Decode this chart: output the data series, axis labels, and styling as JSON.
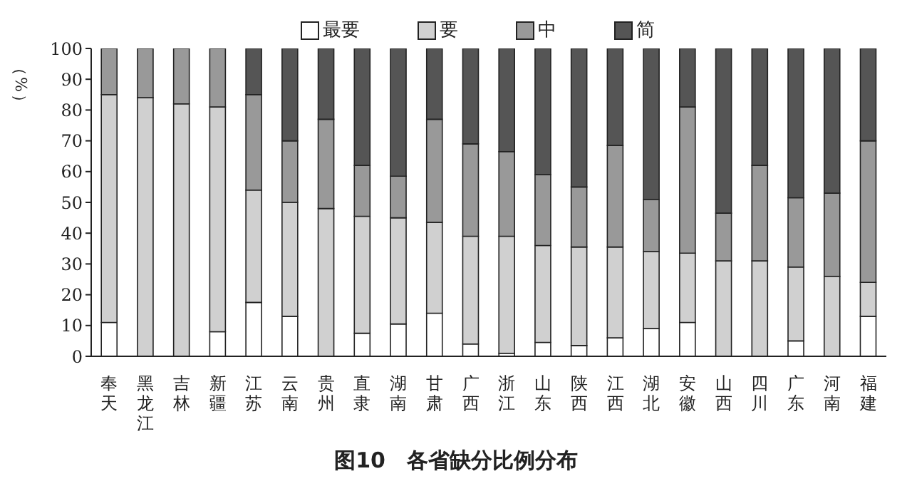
{
  "chart_data": {
    "type": "bar",
    "title": "图10　各省缺分比例分布",
    "ylabel": "（%）",
    "stacked": true,
    "legend": "top",
    "grid": false,
    "categories": [
      "奉天",
      "黑龙江",
      "吉林",
      "新疆",
      "江苏",
      "云南",
      "贵州",
      "直隶",
      "湖南",
      "甘肃",
      "广西",
      "浙江",
      "山东",
      "陕西",
      "江西",
      "湖北",
      "安徽",
      "山西",
      "四川",
      "广东",
      "河南",
      "福建"
    ],
    "ylim": [
      0,
      100
    ],
    "yticks": [
      0,
      10,
      20,
      30,
      40,
      50,
      60,
      70,
      80,
      90,
      100
    ],
    "series": [
      {
        "name": "最要",
        "color": "#ffffff",
        "values": [
          11,
          0,
          0,
          8,
          17.5,
          13,
          0,
          7.5,
          10.5,
          14,
          4,
          1,
          4.5,
          3.5,
          6,
          9,
          11,
          0,
          0,
          5,
          0,
          13
        ]
      },
      {
        "name": "要",
        "color": "#d0d0d0",
        "values": [
          74,
          84,
          82,
          73,
          36.5,
          37,
          48,
          38,
          34.5,
          29.5,
          35,
          38,
          31.5,
          32,
          29.5,
          25,
          22.5,
          31,
          31,
          24,
          26,
          11
        ]
      },
      {
        "name": "中",
        "color": "#999999",
        "values": [
          15,
          16,
          18,
          19,
          31,
          20,
          29,
          16.5,
          13.5,
          33.5,
          30,
          27.5,
          23,
          19.5,
          33,
          17,
          47.5,
          15.5,
          31,
          22.5,
          27,
          46
        ]
      },
      {
        "name": "简",
        "color": "#555555",
        "values": [
          0,
          0,
          0,
          0,
          15,
          30,
          23,
          38,
          41.5,
          23,
          31,
          33.5,
          41,
          45,
          31.5,
          49,
          19,
          53.5,
          38,
          48.5,
          47,
          30
        ]
      }
    ]
  }
}
